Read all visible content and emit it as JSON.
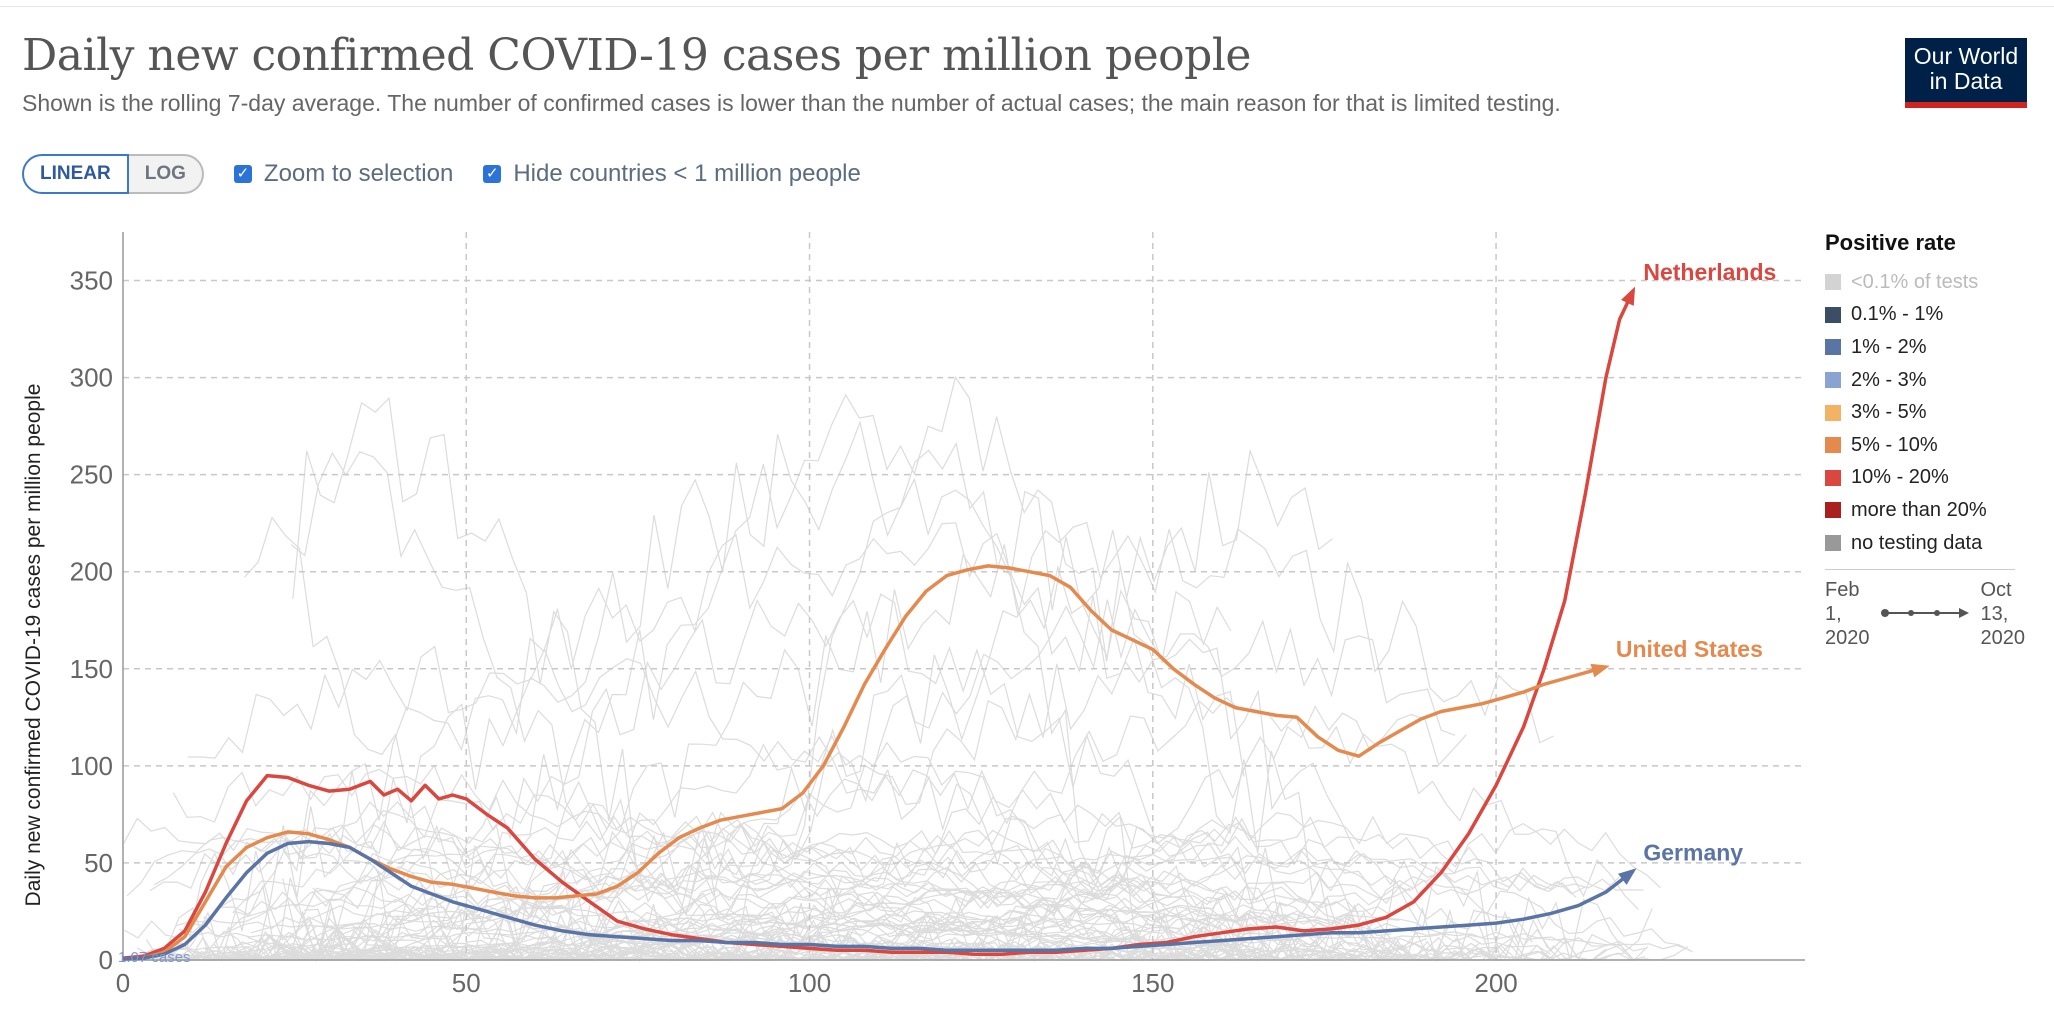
{
  "header": {
    "title": "Daily new confirmed COVID-19 cases per million people",
    "subtitle": "Shown is the rolling 7-day average. The number of confirmed cases is lower than the number of actual cases; the main reason for that is limited testing.",
    "logo_line1": "Our World",
    "logo_line2": "in Data"
  },
  "controls": {
    "linear_label": "LINEAR",
    "log_label": "LOG",
    "zoom_label": "Zoom to selection",
    "hide_label": "Hide countries < 1 million people"
  },
  "legend": {
    "title": "Positive rate",
    "items": [
      {
        "label": "<0.1% of tests",
        "color": "#d3d3d3"
      },
      {
        "label": "0.1% - 1%",
        "color": "#3c4e66"
      },
      {
        "label": "1% - 2%",
        "color": "#5a74a6"
      },
      {
        "label": "2% - 3%",
        "color": "#8aa3d3"
      },
      {
        "label": "3% - 5%",
        "color": "#f3b365"
      },
      {
        "label": "5% - 10%",
        "color": "#e48a4e"
      },
      {
        "label": "10% - 20%",
        "color": "#d9473f"
      },
      {
        "label": "more than 20%",
        "color": "#a9201f"
      },
      {
        "label": "no testing data",
        "color": "#999999"
      }
    ]
  },
  "timeline": {
    "start_line1": "Feb",
    "start_line2": "1,",
    "start_line3": "2020",
    "end_line1": "Oct",
    "end_line2": "13,",
    "end_line3": "2020"
  },
  "chart_data": {
    "type": "line",
    "title": "Daily new confirmed COVID-19 cases per million people",
    "ylabel": "Daily new confirmed COVID-19 cases per million people",
    "xlabel": "",
    "xlim": [
      0,
      245
    ],
    "ylim": [
      0,
      375
    ],
    "x_ticks": [
      0,
      50,
      100,
      150,
      200
    ],
    "y_ticks": [
      0,
      50,
      100,
      150,
      200,
      250,
      300,
      350
    ],
    "grid": true,
    "legend_position": "right",
    "start_annotation": "1.07 cases",
    "series": [
      {
        "name": "Netherlands",
        "color": "#d9473f",
        "x": [
          0,
          3,
          6,
          9,
          12,
          15,
          18,
          21,
          24,
          27,
          30,
          33,
          36,
          38,
          40,
          42,
          44,
          46,
          48,
          50,
          53,
          56,
          60,
          64,
          68,
          72,
          76,
          80,
          84,
          88,
          92,
          96,
          100,
          104,
          108,
          112,
          116,
          120,
          124,
          128,
          132,
          136,
          140,
          144,
          148,
          152,
          156,
          160,
          164,
          168,
          172,
          176,
          180,
          184,
          188,
          192,
          196,
          200,
          204,
          207,
          210,
          213,
          216,
          218,
          220
        ],
        "y": [
          1,
          2,
          6,
          15,
          35,
          60,
          82,
          95,
          94,
          90,
          87,
          88,
          92,
          85,
          88,
          82,
          90,
          83,
          85,
          83,
          75,
          68,
          52,
          40,
          30,
          20,
          16,
          13,
          11,
          9,
          8,
          7,
          6,
          5,
          5,
          4,
          4,
          4,
          3,
          3,
          4,
          4,
          5,
          6,
          8,
          9,
          12,
          14,
          16,
          17,
          15,
          16,
          18,
          22,
          30,
          45,
          65,
          90,
          120,
          150,
          185,
          240,
          300,
          330,
          345
        ]
      },
      {
        "name": "United States",
        "color": "#e48a4e",
        "x": [
          0,
          3,
          6,
          9,
          12,
          15,
          18,
          21,
          24,
          27,
          30,
          33,
          36,
          39,
          42,
          45,
          48,
          51,
          54,
          57,
          60,
          63,
          66,
          69,
          72,
          75,
          78,
          81,
          84,
          87,
          90,
          93,
          96,
          99,
          102,
          105,
          108,
          111,
          114,
          117,
          120,
          123,
          126,
          129,
          132,
          135,
          138,
          141,
          144,
          147,
          150,
          153,
          156,
          159,
          162,
          165,
          168,
          171,
          174,
          177,
          180,
          183,
          186,
          189,
          192,
          195,
          198,
          201,
          204,
          207,
          210,
          213,
          216
        ],
        "y": [
          0.5,
          1,
          4,
          12,
          30,
          48,
          58,
          63,
          66,
          65,
          62,
          58,
          52,
          47,
          43,
          40,
          39,
          37,
          35,
          33,
          32,
          32,
          33,
          34,
          38,
          45,
          55,
          63,
          68,
          72,
          74,
          76,
          78,
          86,
          100,
          120,
          142,
          160,
          177,
          190,
          198,
          201,
          203,
          202,
          200,
          198,
          192,
          180,
          170,
          165,
          160,
          150,
          142,
          135,
          130,
          128,
          126,
          125,
          115,
          108,
          105,
          112,
          118,
          124,
          128,
          130,
          132,
          135,
          138,
          142,
          145,
          148,
          151
        ]
      },
      {
        "name": "Germany",
        "color": "#5a74a6",
        "x": [
          0,
          3,
          6,
          9,
          12,
          15,
          18,
          21,
          24,
          27,
          30,
          33,
          36,
          39,
          42,
          45,
          48,
          52,
          56,
          60,
          64,
          68,
          72,
          76,
          80,
          84,
          88,
          92,
          96,
          100,
          104,
          108,
          112,
          116,
          120,
          124,
          128,
          132,
          136,
          140,
          144,
          148,
          152,
          156,
          160,
          164,
          168,
          172,
          176,
          180,
          184,
          188,
          192,
          196,
          200,
          204,
          208,
          212,
          216,
          220
        ],
        "y": [
          0.5,
          1,
          3,
          8,
          18,
          32,
          45,
          55,
          60,
          61,
          60,
          58,
          52,
          45,
          38,
          34,
          30,
          26,
          22,
          18,
          15,
          13,
          12,
          11,
          10,
          10,
          9,
          9,
          8,
          8,
          7,
          7,
          6,
          6,
          5,
          5,
          5,
          5,
          5,
          6,
          6,
          7,
          8,
          9,
          10,
          11,
          12,
          13,
          14,
          14,
          15,
          16,
          17,
          18,
          19,
          21,
          24,
          28,
          35,
          46
        ]
      }
    ]
  }
}
